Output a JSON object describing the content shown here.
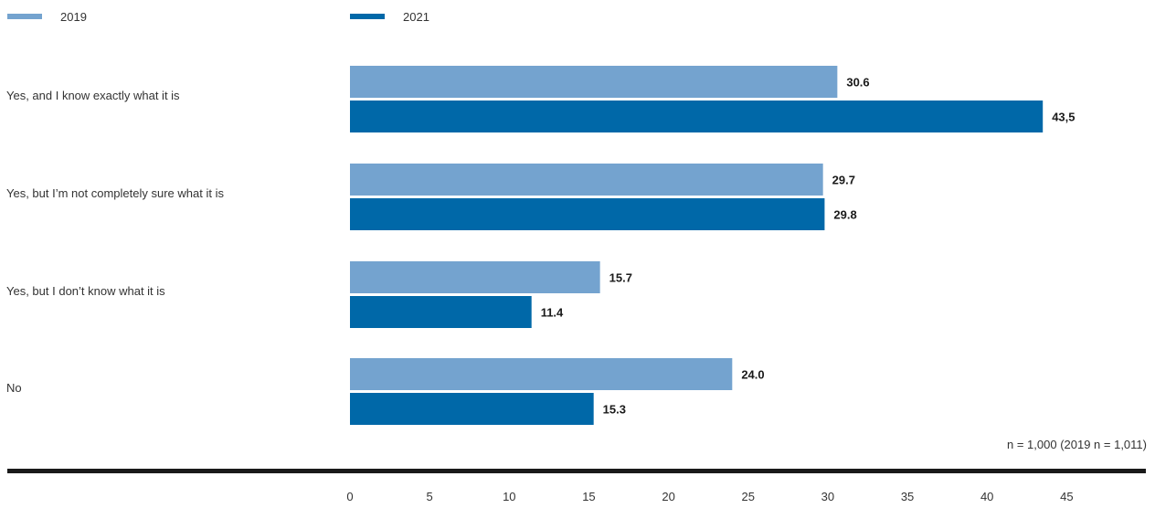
{
  "chart_data": {
    "type": "bar",
    "orientation": "horizontal",
    "categories": [
      "Yes, and I know exactly what it is",
      "Yes, but I’m not completely sure what it is",
      "Yes, but I don’t know what it is",
      "No"
    ],
    "series": [
      {
        "name": "2019",
        "color": "#74a3cf",
        "values": [
          30.6,
          29.7,
          15.7,
          24.0
        ],
        "labels": [
          "30.6",
          "29.7",
          "15.7",
          "24.0"
        ]
      },
      {
        "name": "2021",
        "color": "#0068a8",
        "values": [
          43.5,
          29.8,
          11.4,
          15.3
        ],
        "labels": [
          "43,5",
          "29.8",
          "11.4",
          "15.3"
        ]
      }
    ],
    "xlim": [
      0,
      45
    ],
    "x_ticks": [
      "0",
      "5",
      "10",
      "15",
      "20",
      "25",
      "30",
      "35",
      "40",
      "45"
    ],
    "legend_position": "top",
    "grid": false,
    "note": "n = 1,000 (2019 n = 1,011)",
    "axis_line_color": "#1a1a1a"
  }
}
